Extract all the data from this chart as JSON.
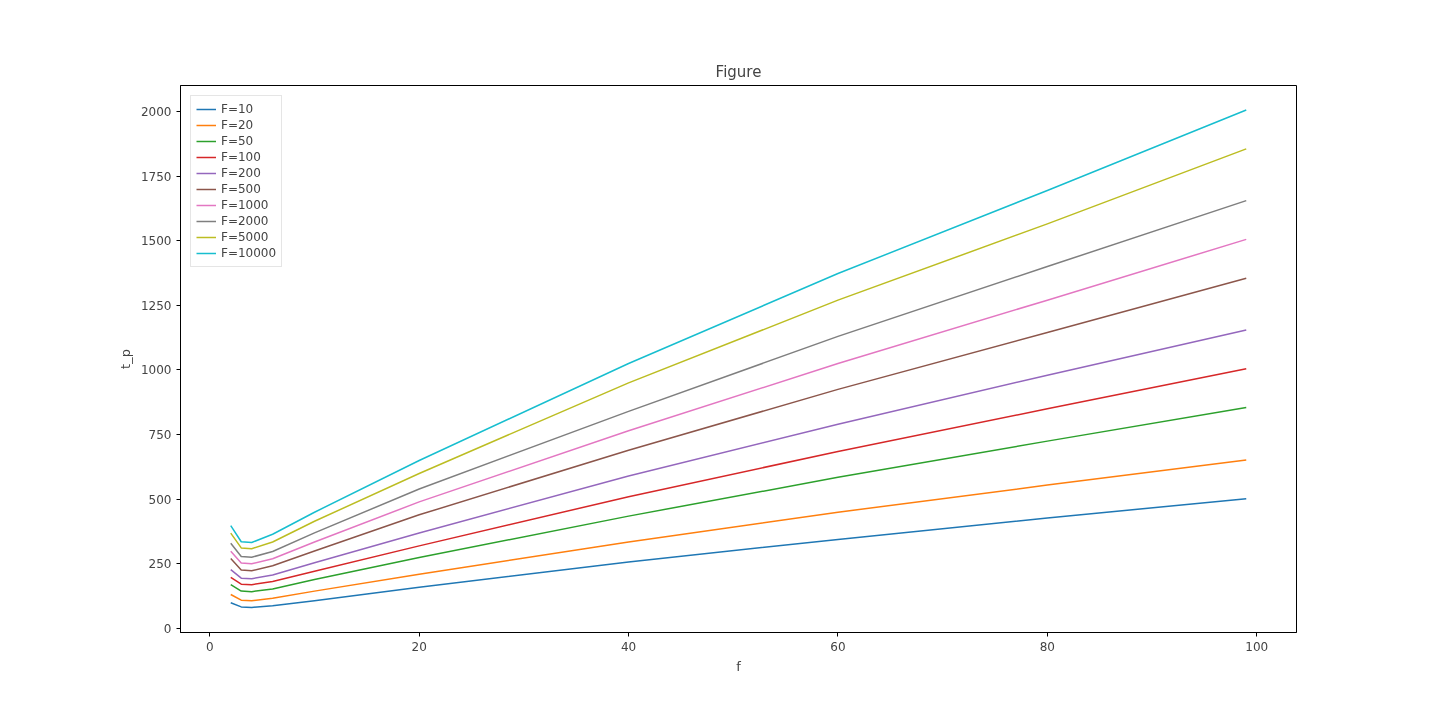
{
  "chart_data": {
    "type": "line",
    "title": "Figure",
    "xlabel": "f",
    "ylabel": "t_p",
    "x": [
      2,
      3,
      4,
      6,
      10,
      20,
      40,
      60,
      80,
      99
    ],
    "series": [
      {
        "name": "F=10",
        "color": "#1f77b4",
        "values": [
          100,
          84,
          82,
          88,
          108,
          160,
          258,
          345,
          428,
          502
        ]
      },
      {
        "name": "F=20",
        "color": "#ff7f0e",
        "values": [
          132,
          110,
          108,
          117,
          145,
          210,
          335,
          450,
          555,
          652
        ]
      },
      {
        "name": "F=50",
        "color": "#2ca02c",
        "values": [
          170,
          145,
          143,
          153,
          190,
          275,
          435,
          585,
          725,
          855
        ]
      },
      {
        "name": "F=100",
        "color": "#d62728",
        "values": [
          198,
          172,
          170,
          182,
          222,
          320,
          510,
          685,
          850,
          1005
        ]
      },
      {
        "name": "F=200",
        "color": "#9467bd",
        "values": [
          228,
          195,
          193,
          207,
          255,
          370,
          590,
          790,
          980,
          1155
        ]
      },
      {
        "name": "F=500",
        "color": "#8c564b",
        "values": [
          271,
          227,
          224,
          243,
          300,
          440,
          690,
          925,
          1145,
          1355
        ]
      },
      {
        "name": "F=1000",
        "color": "#e377c2",
        "values": [
          299,
          254,
          251,
          270,
          335,
          490,
          765,
          1025,
          1270,
          1505
        ]
      },
      {
        "name": "F=2000",
        "color": "#7f7f7f",
        "values": [
          330,
          279,
          276,
          298,
          370,
          540,
          840,
          1130,
          1400,
          1655
        ]
      },
      {
        "name": "F=5000",
        "color": "#bcbd22",
        "values": [
          369,
          312,
          309,
          335,
          415,
          600,
          950,
          1270,
          1565,
          1855
        ]
      },
      {
        "name": "F=10000",
        "color": "#17becf",
        "values": [
          398,
          336,
          333,
          365,
          450,
          650,
          1025,
          1373,
          1694,
          2005
        ]
      }
    ],
    "xlim": [
      -2.8,
      103.8
    ],
    "ylim": [
      -15,
      2100
    ],
    "xticks": [
      0,
      20,
      40,
      60,
      80,
      100
    ],
    "yticks": [
      0,
      250,
      500,
      750,
      1000,
      1250,
      1500,
      1750,
      2000
    ],
    "legend": "top left",
    "grid": false
  }
}
